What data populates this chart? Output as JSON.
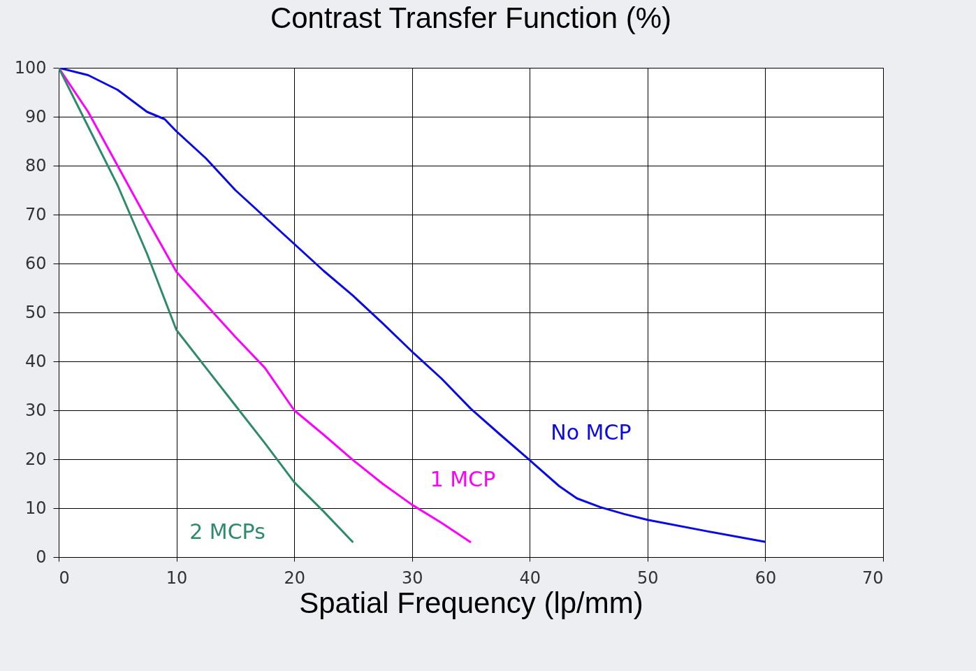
{
  "chart_data": {
    "type": "line",
    "title": "Contrast Transfer Function (%)",
    "xlabel": "Spatial Frequency (lp/mm)",
    "xlim": [
      0,
      70
    ],
    "xticks": [
      0,
      10,
      20,
      30,
      40,
      50,
      60,
      70
    ],
    "ylim": [
      0,
      100
    ],
    "yticks": [
      0,
      10,
      20,
      30,
      40,
      50,
      60,
      70,
      80,
      90,
      100
    ],
    "grid": true,
    "legend": false,
    "series": [
      {
        "name": "No MCP",
        "color": "#0a0ae6",
        "x": [
          0,
          2.5,
          5,
          7.5,
          9,
          10,
          12.5,
          15,
          17.5,
          20,
          22.5,
          25,
          27.5,
          30,
          32.5,
          35,
          37.5,
          40,
          42.5,
          44,
          46,
          48,
          50,
          55,
          60
        ],
        "values": [
          100,
          98.5,
          95.5,
          91,
          89.5,
          87,
          81.5,
          75,
          69.5,
          64,
          58.5,
          53.4,
          47.8,
          42,
          36.5,
          30.3,
          25,
          19.8,
          14.5,
          12,
          10.2,
          8.8,
          7.6,
          5.3,
          3.1
        ]
      },
      {
        "name": "1 MCP",
        "color": "#ff00ff",
        "x": [
          0,
          2.5,
          5,
          7.5,
          10,
          12.5,
          15,
          17.5,
          20,
          22.5,
          25,
          27.5,
          30,
          32.5,
          35
        ],
        "values": [
          100,
          91,
          80,
          69,
          58.3,
          51.6,
          45,
          38.7,
          30,
          25,
          19.8,
          15,
          10.7,
          7,
          3
        ]
      },
      {
        "name": "2 MCPs",
        "color": "#2e8b6a",
        "x": [
          0,
          2.5,
          5,
          7.5,
          10,
          12.5,
          15,
          17.5,
          20,
          22.5,
          25
        ],
        "values": [
          100,
          88,
          76,
          62,
          46.4,
          38.7,
          31,
          23.3,
          15.3,
          9.3,
          3
        ]
      }
    ]
  }
}
